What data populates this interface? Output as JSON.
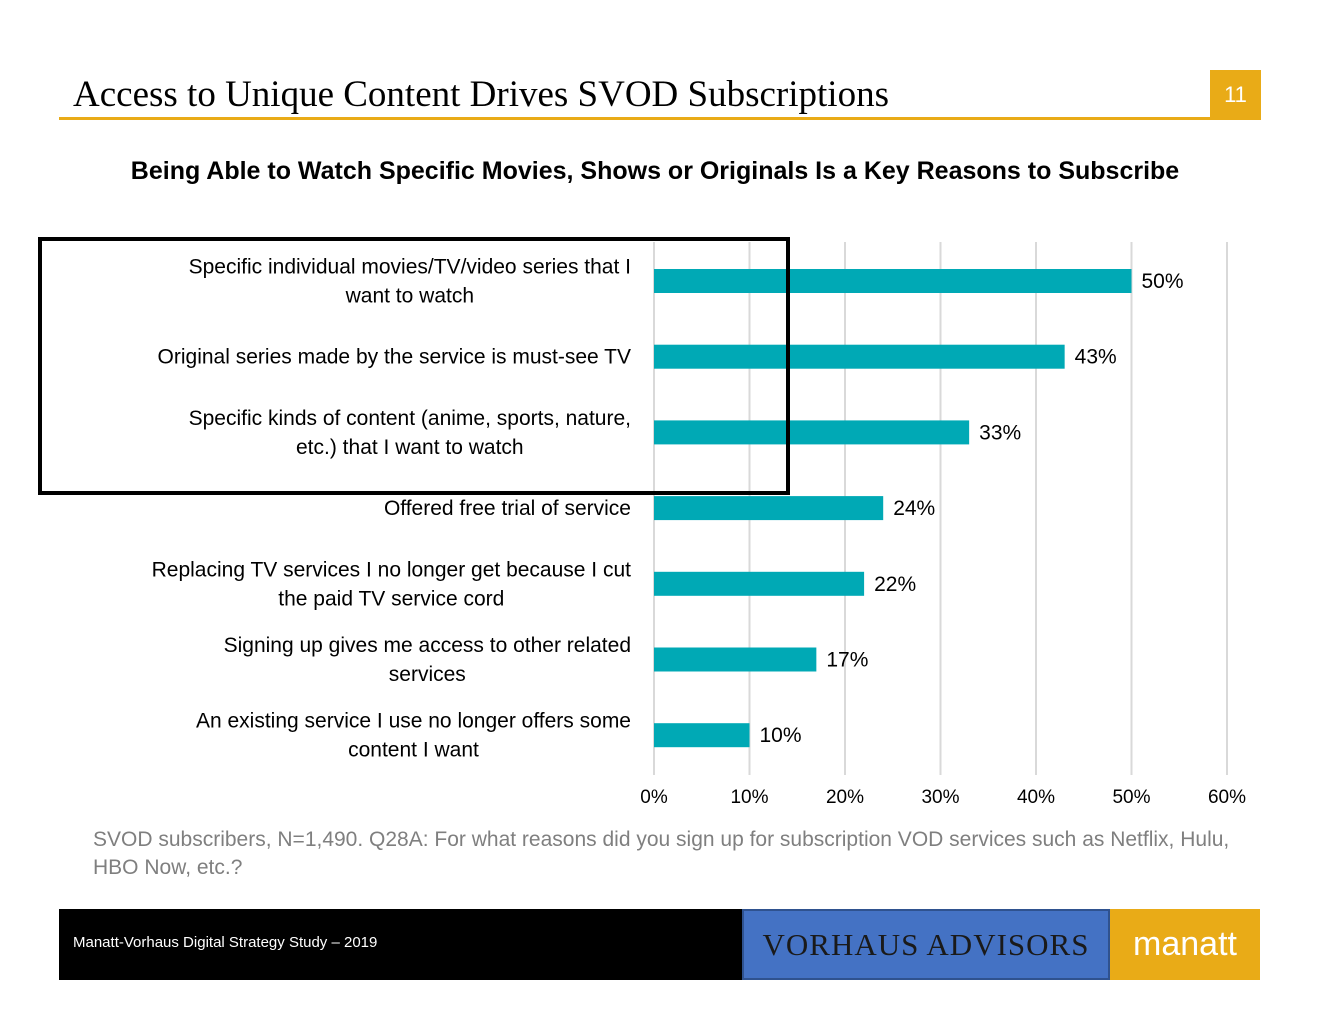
{
  "header": {
    "title": "Access to Unique Content Drives SVOD Subscriptions",
    "page_number": "11",
    "accent_color": "#e9ab17"
  },
  "chart_data": {
    "type": "bar",
    "orientation": "horizontal",
    "title": "Being Able to Watch Specific Movies, Shows or Originals Is a Key Reasons to Subscribe",
    "categories": [
      [
        "Specific individual movies/TV/video series that I",
        "want to watch"
      ],
      [
        "Original series made by the service is must-see TV"
      ],
      [
        "Specific kinds of content (anime, sports, nature,",
        "etc.) that I want to watch"
      ],
      [
        "Offered free trial of service"
      ],
      [
        "Replacing TV services I no longer get because I cut",
        "the paid TV service cord"
      ],
      [
        "Signing up gives me access to other related",
        "services"
      ],
      [
        "An existing service I use no longer offers some",
        "content I want"
      ]
    ],
    "values": [
      50,
      43,
      33,
      24,
      22,
      17,
      10
    ],
    "data_labels": [
      "50%",
      "43%",
      "33%",
      "24%",
      "22%",
      "17%",
      "10%"
    ],
    "xlim": [
      0,
      60
    ],
    "xticks": [
      "0%",
      "10%",
      "20%",
      "30%",
      "40%",
      "50%",
      "60%"
    ],
    "xlabel": "",
    "ylabel": "",
    "grid": "vertical",
    "bar_color": "#00a9b5",
    "highlighted_categories": [
      0,
      1,
      2
    ]
  },
  "footnote": "SVOD subscribers, N=1,490. Q28A: For what reasons did you sign up for subscription VOD services such as Netflix, Hulu, HBO Now, etc.?",
  "footer": {
    "study": "Manatt-Vorhaus Digital Strategy Study – 2019",
    "vorhaus_logo_text": "VORHAUS ADVISORS",
    "manatt_logo_text": "manatt"
  }
}
